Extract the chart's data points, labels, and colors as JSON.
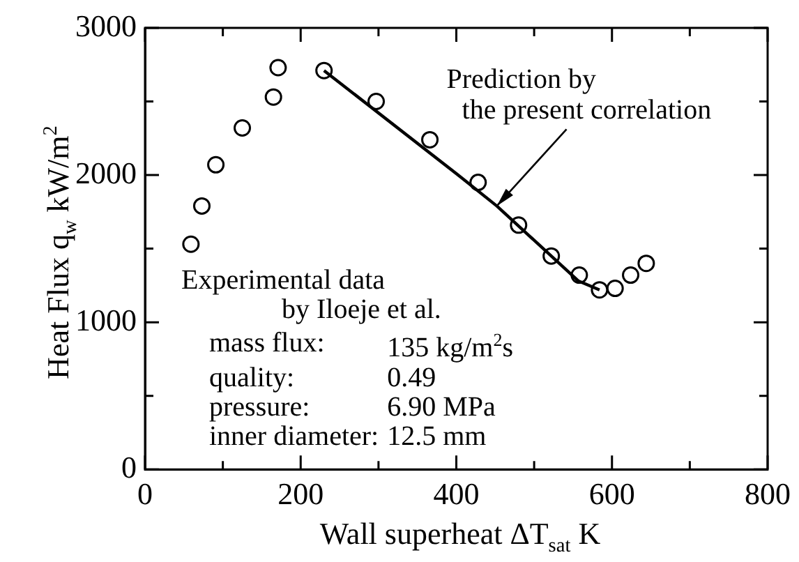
{
  "chart_data": {
    "type": "scatter",
    "xlabel": "Wall superheat   ΔT$_{sat}$   K",
    "ylabel": "Heat Flux   q$_{w}$   kW/m$^{2}$",
    "xlim": [
      0,
      800
    ],
    "ylim": [
      0,
      3000
    ],
    "xticks": [
      0,
      {
        "value": 100,
        "label": null
      },
      200,
      {
        "value": 300,
        "label": null
      },
      400,
      {
        "value": 500,
        "label": null
      },
      600,
      {
        "value": 700,
        "label": null
      },
      800
    ],
    "yticks": [
      0,
      {
        "value": 500,
        "label": null
      },
      1000,
      {
        "value": 1500,
        "label": null
      },
      2000,
      {
        "value": 2500,
        "label": null
      },
      3000
    ],
    "series": [
      {
        "type": "scatter",
        "color": "#000000",
        "marker": "circle",
        "x": [
          59,
          73,
          91,
          125,
          165,
          171,
          230,
          297,
          366,
          428,
          480,
          522,
          558,
          584,
          604,
          624,
          644
        ],
        "values": [
          1530,
          1790,
          2070,
          2320,
          2530,
          2730,
          2710,
          2500,
          2240,
          1950,
          1660,
          1450,
          1320,
          1220,
          1230,
          1320,
          1400
        ]
      },
      {
        "type": "line",
        "color": "#000000",
        "marker": "none",
        "line_style": "solid",
        "x": [
          230,
          400,
          452,
          557,
          584
        ],
        "values": [
          2710,
          2010,
          1790,
          1280,
          1220
        ]
      }
    ],
    "annotations": [
      {
        "text": "Prediction by\nthe present correlation",
        "x": 452,
        "y": 1790
      },
      "Experimental data",
      "by Iloeje et al.",
      "mass flux: 135 kg/m$^{2}$s",
      "quality: 0.49",
      "pressure: 6.90 MPa",
      "inner diameter: 12.5 mm"
    ]
  }
}
